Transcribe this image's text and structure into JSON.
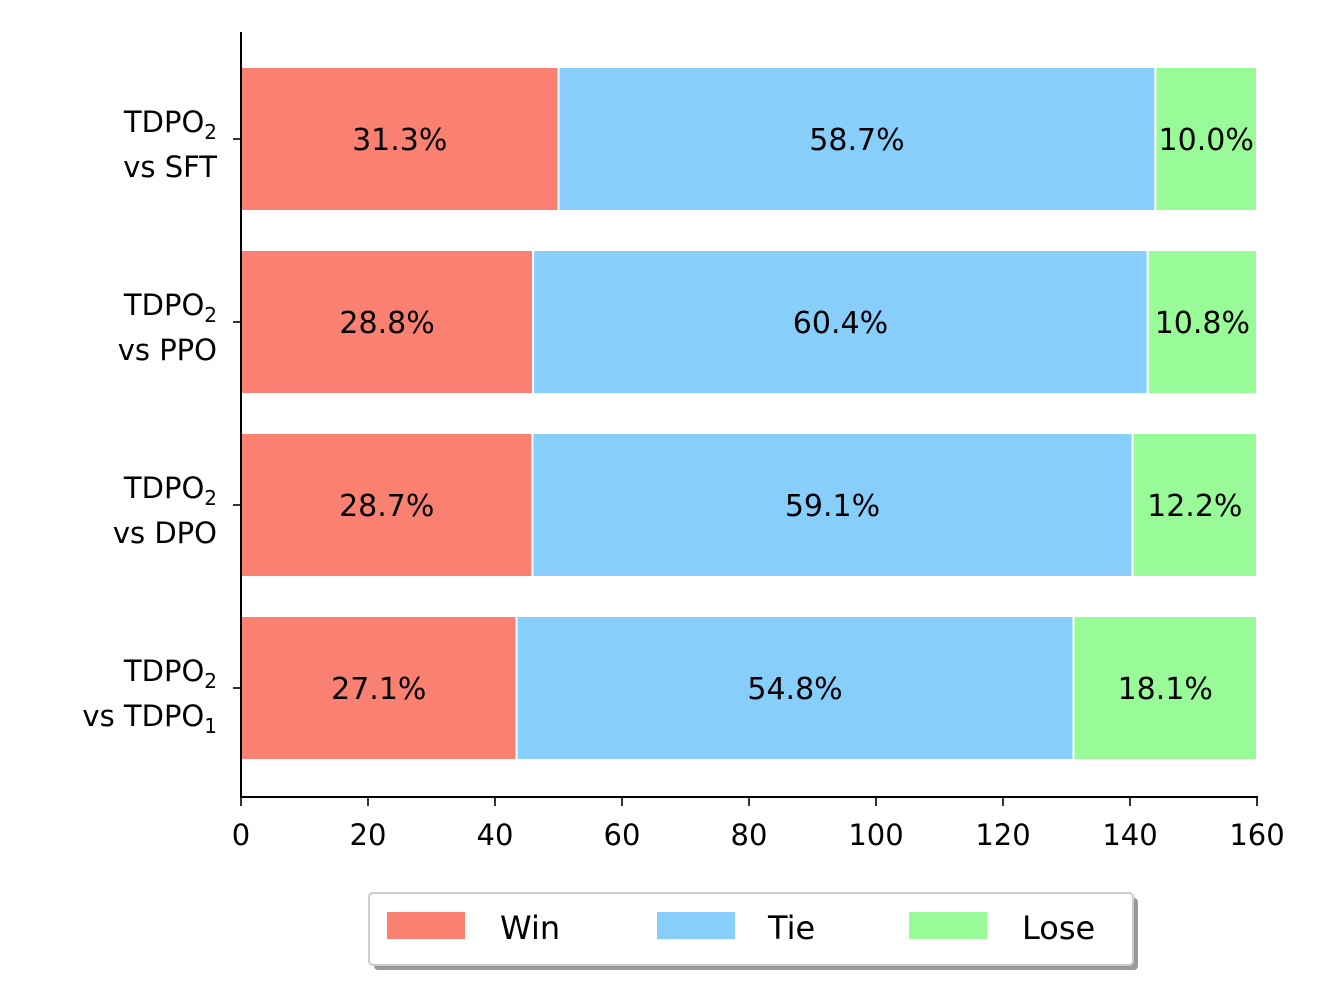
{
  "chart_data": {
    "type": "bar",
    "orientation": "horizontal",
    "stacked": true,
    "categories": [
      {
        "main": "TDPO",
        "main_sub": "2",
        "line2": "vs SFT",
        "line2_sub": ""
      },
      {
        "main": "TDPO",
        "main_sub": "2",
        "line2": "vs PPO",
        "line2_sub": ""
      },
      {
        "main": "TDPO",
        "main_sub": "2",
        "line2": "vs DPO",
        "line2_sub": ""
      },
      {
        "main": "TDPO",
        "main_sub": "2",
        "line2": "vs TDPO",
        "line2_sub": "1"
      }
    ],
    "series": [
      {
        "name": "Win",
        "color": "#fa8072",
        "values": [
          50,
          46,
          45.9,
          43.4
        ],
        "labels": [
          "31.3%",
          "28.8%",
          "28.7%",
          "27.1%"
        ]
      },
      {
        "name": "Tie",
        "color": "#87cefa",
        "values": [
          94,
          96.8,
          94.5,
          87.7
        ],
        "labels": [
          "58.7%",
          "60.4%",
          "59.1%",
          "54.8%"
        ]
      },
      {
        "name": "Lose",
        "color": "#98fb98",
        "values": [
          16,
          17.2,
          19.6,
          28.9
        ],
        "labels": [
          "10.0%",
          "10.8%",
          "12.2%",
          "18.1%"
        ]
      }
    ],
    "xlim": [
      0,
      160
    ],
    "xticks": [
      "0",
      "20",
      "40",
      "60",
      "80",
      "100",
      "120",
      "140",
      "160"
    ],
    "legend": {
      "placement": "bottom-center",
      "entries": [
        "Win",
        "Tie",
        "Lose"
      ]
    },
    "grid": false,
    "title": "",
    "xlabel": "",
    "ylabel": ""
  }
}
